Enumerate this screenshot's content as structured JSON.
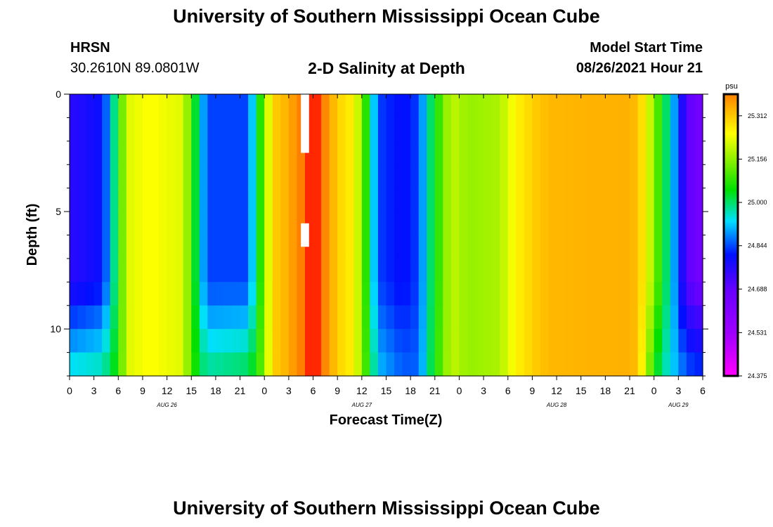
{
  "header": {
    "title": "University of Southern Mississippi Ocean Cube",
    "station": "HRSN",
    "coordinates": "30.2610N  89.0801W",
    "model_start_label": "Model Start Time",
    "model_start_value": "08/26/2021 Hour 21"
  },
  "footer": {
    "title": "University of Southern Mississippi Ocean Cube"
  },
  "chart_data": {
    "type": "heatmap",
    "title": "2-D Salinity at Depth",
    "xlabel": "Forecast Time(Z)",
    "ylabel": "Depth (ft)",
    "x_range_hours": [
      0,
      78
    ],
    "y_range_ft": [
      0,
      12
    ],
    "y_ticks": [
      0,
      5,
      10
    ],
    "x_tick_labels": [
      "0",
      "3",
      "6",
      "9",
      "12",
      "15",
      "18",
      "21",
      "0",
      "3",
      "6",
      "9",
      "12",
      "15",
      "18",
      "21",
      "0",
      "3",
      "6",
      "9",
      "12",
      "15",
      "18",
      "21",
      "0",
      "3",
      "6"
    ],
    "date_labels": [
      {
        "hour": 12,
        "label": "AUG 26"
      },
      {
        "hour": 36,
        "label": "AUG 27"
      },
      {
        "hour": 60,
        "label": "AUG 28"
      },
      {
        "hour": 75,
        "label": "AUG 29"
      }
    ],
    "colorbar": {
      "unit": "psu",
      "min": 24.375,
      "max": 25.39,
      "tick_labels": [
        "25.312",
        "25.156",
        "25.000",
        "24.844",
        "24.688",
        "24.531",
        "24.375"
      ]
    },
    "surface_salinity_by_hour": [
      [
        0,
        24.76
      ],
      [
        4,
        24.8
      ],
      [
        5,
        24.92
      ],
      [
        6,
        25.05
      ],
      [
        7,
        25.22
      ],
      [
        10,
        25.25
      ],
      [
        14,
        25.22
      ],
      [
        15,
        25.1
      ],
      [
        16,
        24.95
      ],
      [
        17,
        24.84
      ],
      [
        22,
        24.84
      ],
      [
        23,
        25.0
      ],
      [
        24,
        25.15
      ],
      [
        25,
        25.3
      ],
      [
        27,
        25.34
      ],
      [
        28,
        25.38
      ],
      [
        30,
        25.43
      ],
      [
        31,
        25.4
      ],
      [
        32,
        25.36
      ],
      [
        33,
        25.3
      ],
      [
        35,
        25.26
      ],
      [
        36,
        25.15
      ],
      [
        37,
        25.0
      ],
      [
        38,
        24.84
      ],
      [
        41,
        24.8
      ],
      [
        43,
        24.84
      ],
      [
        44,
        24.95
      ],
      [
        45,
        25.05
      ],
      [
        47,
        25.2
      ],
      [
        49,
        25.16
      ],
      [
        53,
        25.18
      ],
      [
        55,
        25.26
      ],
      [
        57,
        25.3
      ],
      [
        59,
        25.33
      ],
      [
        69,
        25.34
      ],
      [
        70,
        25.32
      ],
      [
        71,
        25.25
      ],
      [
        72,
        25.15
      ],
      [
        73,
        25.05
      ],
      [
        74,
        24.95
      ],
      [
        75,
        24.84
      ],
      [
        76,
        24.7
      ],
      [
        78,
        24.65
      ]
    ],
    "bottom_salinity_by_hour": [
      [
        0,
        24.96
      ],
      [
        4,
        24.98
      ],
      [
        5,
        25.02
      ],
      [
        6,
        25.06
      ],
      [
        7,
        25.22
      ],
      [
        10,
        25.25
      ],
      [
        14,
        25.22
      ],
      [
        15,
        25.1
      ],
      [
        16,
        25.02
      ],
      [
        17,
        24.99
      ],
      [
        22,
        25.02
      ],
      [
        23,
        25.06
      ],
      [
        24,
        25.16
      ],
      [
        25,
        25.3
      ],
      [
        27,
        25.34
      ],
      [
        28,
        25.38
      ],
      [
        30,
        25.43
      ],
      [
        31,
        25.4
      ],
      [
        32,
        25.36
      ],
      [
        33,
        25.3
      ],
      [
        35,
        25.26
      ],
      [
        36,
        25.15
      ],
      [
        37,
        25.04
      ],
      [
        38,
        24.92
      ],
      [
        41,
        24.86
      ],
      [
        43,
        24.86
      ],
      [
        44,
        24.96
      ],
      [
        45,
        25.06
      ],
      [
        47,
        25.2
      ],
      [
        49,
        25.16
      ],
      [
        53,
        25.18
      ],
      [
        55,
        25.26
      ],
      [
        57,
        25.3
      ],
      [
        59,
        25.33
      ],
      [
        69,
        25.34
      ],
      [
        70,
        25.32
      ],
      [
        71,
        25.2
      ],
      [
        72,
        25.05
      ],
      [
        73,
        24.98
      ],
      [
        74,
        24.94
      ],
      [
        75,
        24.9
      ],
      [
        76,
        24.86
      ],
      [
        78,
        24.84
      ]
    ],
    "mixing_depth_ft": 8,
    "missing_data_cells": [
      {
        "hour_from": 28.5,
        "hour_to": 29.5,
        "depth_from": 0,
        "depth_to": 2.5
      },
      {
        "hour_from": 28.5,
        "hour_to": 29.5,
        "depth_from": 5.5,
        "depth_to": 6.5
      }
    ]
  }
}
